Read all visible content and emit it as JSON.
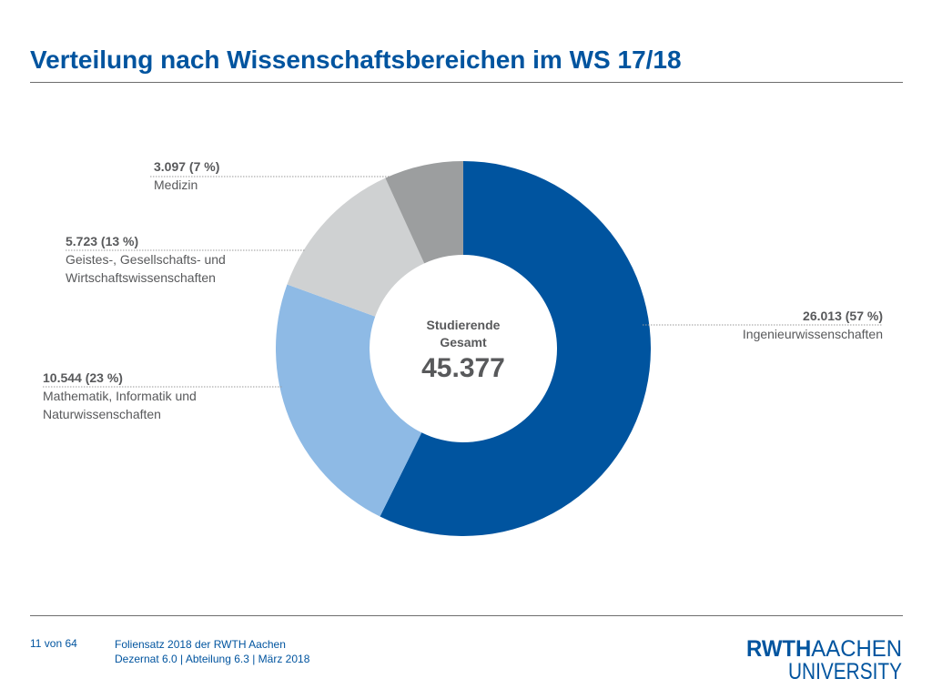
{
  "header": {
    "title": "Verteilung nach Wissenschaftsbereichen im WS 17/18"
  },
  "chart_data": {
    "type": "pie",
    "title": "Verteilung nach Wissenschaftsbereichen im WS 17/18",
    "center": {
      "caption_line1": "Studierende",
      "caption_line2": "Gesamt",
      "total": "45.377"
    },
    "slices": [
      {
        "name_lines": [
          "Ingenieurwissenschaften"
        ],
        "value": 26013,
        "value_label": "26.013 (57 %)",
        "percent": 57,
        "color": "#00549f"
      },
      {
        "name_lines": [
          "Mathematik, Informatik und",
          "Naturwissenschaften"
        ],
        "value": 10544,
        "value_label": "10.544 (23 %)",
        "percent": 23,
        "color": "#8ebae5"
      },
      {
        "name_lines": [
          "Geistes-, Gesellschafts- und",
          "Wirtschaftswissenschaften"
        ],
        "value": 5723,
        "value_label": "5.723 (13 %)",
        "percent": 13,
        "color": "#cfd1d2"
      },
      {
        "name_lines": [
          "Medizin"
        ],
        "value": 3097,
        "value_label": "3.097 (7 %)",
        "percent": 7,
        "color": "#9c9e9f"
      }
    ]
  },
  "footer": {
    "page": "11 von 64",
    "line1": "Foliensatz 2018 der RWTH Aachen",
    "line2": "Dezernat 6.0 | Abteilung 6.3 | März 2018"
  },
  "logo": {
    "line1_bold": "RWTH",
    "line1_light": "AACHEN",
    "line2": "UNIVERSITY",
    "color": "#00549f"
  }
}
